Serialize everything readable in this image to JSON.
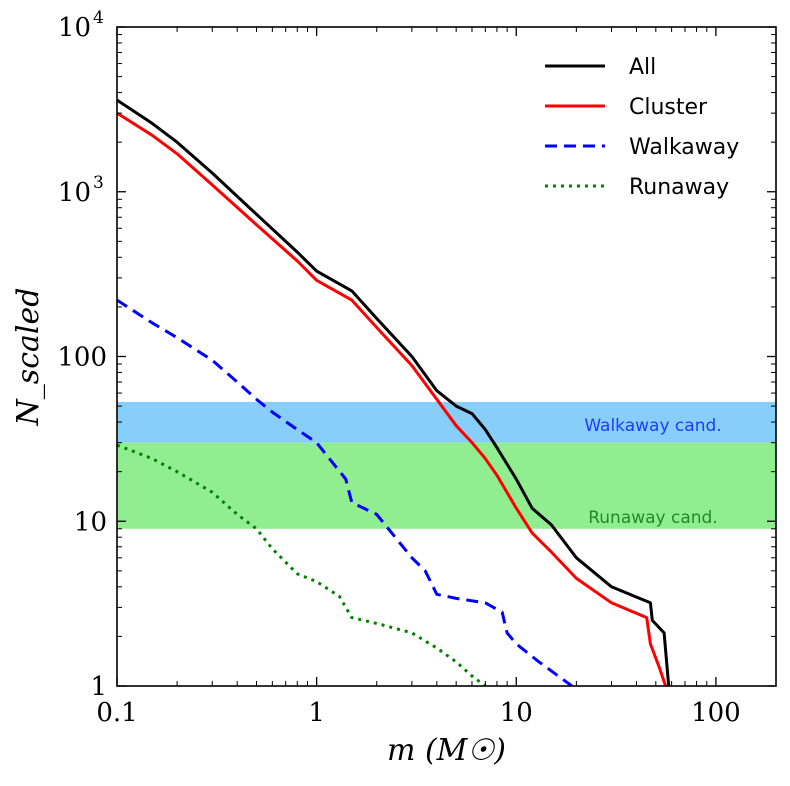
{
  "chart_data": {
    "type": "line",
    "xscale": "log",
    "yscale": "log",
    "xlim": [
      0.1,
      200
    ],
    "ylim": [
      1,
      10000
    ],
    "xlabel": "m (M☉)",
    "ylabel": "N_scaled",
    "x_ticks": [
      {
        "value": 0.1,
        "label": "0.1"
      },
      {
        "value": 1,
        "label": "1"
      },
      {
        "value": 10,
        "label": "10"
      },
      {
        "value": 100,
        "label": "100"
      }
    ],
    "y_ticks": [
      {
        "value": 1,
        "label": "1"
      },
      {
        "value": 10,
        "label": "10"
      },
      {
        "value": 100,
        "label": "100"
      },
      {
        "value": 1000,
        "label": "10",
        "sup": "3"
      },
      {
        "value": 10000,
        "label": "10",
        "sup": "4"
      }
    ],
    "bands": [
      {
        "name": "walkaway-band",
        "label": "Walkaway cand.",
        "y_range": [
          30,
          53
        ],
        "color": "#87cefa",
        "text_color": "#1e3cff"
      },
      {
        "name": "runaway-band",
        "label": "Runaway cand.",
        "y_range": [
          9,
          30
        ],
        "color": "#90ee90",
        "text_color": "#228b22"
      }
    ],
    "legend_position": "top-right",
    "series": [
      {
        "name": "All",
        "color": "#000000",
        "dash": "solid",
        "x": [
          0.1,
          0.15,
          0.2,
          0.3,
          0.5,
          0.8,
          1.0,
          1.5,
          2.0,
          3.0,
          4.0,
          5.0,
          6.0,
          7.0,
          8.0,
          10.0,
          12.0,
          15.0,
          20.0,
          30.0,
          47.0,
          48.0,
          55.0,
          58.0
        ],
        "y": [
          3600,
          2600,
          2000,
          1300,
          730,
          430,
          330,
          250,
          170,
          100,
          62,
          50,
          45,
          36,
          28,
          18,
          12,
          9.5,
          6,
          4,
          3.2,
          2.5,
          2.1,
          1.0
        ]
      },
      {
        "name": "Cluster",
        "color": "#ff0000",
        "dash": "solid",
        "x": [
          0.1,
          0.15,
          0.2,
          0.3,
          0.5,
          0.8,
          1.0,
          1.5,
          2.0,
          3.0,
          4.0,
          5.0,
          6.0,
          7.0,
          8.0,
          10.0,
          12.0,
          15.0,
          20.0,
          30.0,
          45.0,
          47.0,
          52.0,
          56.0
        ],
        "y": [
          3000,
          2200,
          1700,
          1100,
          630,
          380,
          290,
          220,
          150,
          88,
          55,
          38,
          30,
          24,
          19,
          12,
          8.5,
          6.5,
          4.5,
          3.2,
          2.6,
          1.8,
          1.3,
          1.0
        ]
      },
      {
        "name": "Walkaway",
        "color": "#0000ff",
        "dash": "dashed",
        "x": [
          0.1,
          0.15,
          0.2,
          0.3,
          0.4,
          0.5,
          0.6,
          0.8,
          1.0,
          1.4,
          1.5,
          2.0,
          3.0,
          3.5,
          4.0,
          5.0,
          7.0,
          8.5,
          9.0,
          10.0,
          13.0,
          19.0
        ],
        "y": [
          220,
          160,
          130,
          95,
          70,
          55,
          46,
          36,
          30,
          18,
          13,
          11,
          6,
          5,
          3.6,
          3.4,
          3.2,
          2.8,
          2.1,
          1.8,
          1.4,
          1.0
        ]
      },
      {
        "name": "Runaway",
        "color": "#008000",
        "dash": "dotted",
        "x": [
          0.1,
          0.15,
          0.2,
          0.3,
          0.4,
          0.5,
          0.6,
          0.8,
          1.0,
          1.3,
          1.5,
          2.0,
          3.0,
          4.0,
          5.0,
          6.0,
          7.0
        ],
        "y": [
          29,
          24,
          20,
          15,
          11,
          9,
          6.8,
          4.8,
          4.3,
          3.5,
          2.6,
          2.4,
          2.1,
          1.7,
          1.4,
          1.15,
          1.0
        ]
      }
    ]
  }
}
